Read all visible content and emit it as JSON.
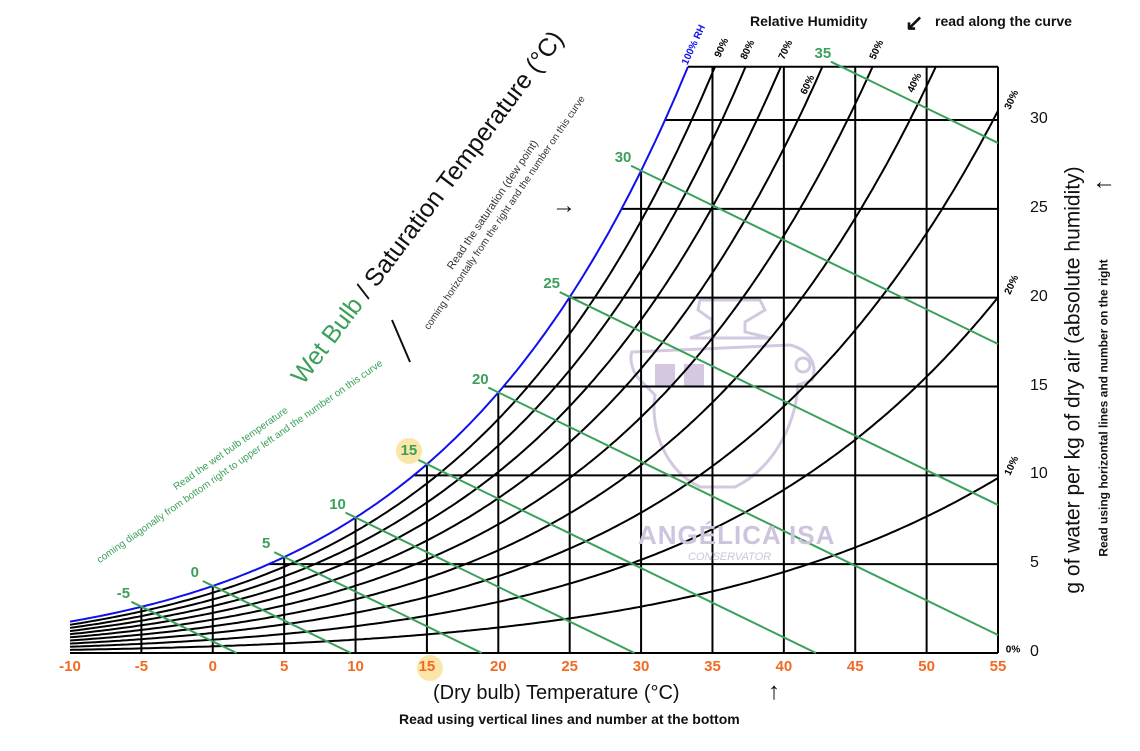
{
  "chart_data": {
    "type": "line",
    "title": "",
    "xlabel": "(Dry bulb) Temperature (°C)",
    "xlabel_note": "Read using vertical lines and number at the bottom",
    "ylabel": "g of water per kg of dry air (absolute humidity)",
    "ylabel_note": "Read using horizontal lines and number on the right",
    "xlim": [
      -10,
      55
    ],
    "ylim": [
      0,
      33
    ],
    "x_ticks": [
      "-10",
      "-5",
      "0",
      "5",
      "10",
      "15",
      "20",
      "25",
      "30",
      "35",
      "40",
      "45",
      "50",
      "55"
    ],
    "y_ticks": [
      "0",
      "5",
      "10",
      "15",
      "20",
      "25",
      "30"
    ],
    "grid": true,
    "relative_humidity": {
      "title": "Relative Humidity",
      "note": "read along the curve",
      "curves_percent": [
        0,
        10,
        20,
        30,
        40,
        50,
        60,
        70,
        80,
        90,
        100
      ],
      "labels": [
        "100% RH",
        "90%",
        "80%",
        "70%",
        "60%",
        "50%",
        "40%",
        "30%",
        "20%",
        "10%",
        "0%"
      ]
    },
    "saturation_curve": {
      "T": [
        -10,
        -5,
        0,
        5,
        10,
        15,
        20,
        25,
        30,
        33
      ],
      "w": [
        1.77,
        2.6,
        3.77,
        5.4,
        7.62,
        10.63,
        14.66,
        20.03,
        27.14,
        32.45
      ]
    },
    "wet_bulb": {
      "title_green": "Wet Bulb",
      "title_sep": "/",
      "title_black": "Saturation Temperature (°C)",
      "values": [
        -5,
        0,
        5,
        10,
        15,
        20,
        25,
        30,
        35
      ],
      "labels": [
        "-5",
        "0",
        "5",
        "10",
        "15",
        "20",
        "25",
        "30",
        "35"
      ],
      "note_line1": "Read the wet bulb temperature",
      "note_line2": "coming diagonally from bottom right to upper left and the number on this curve",
      "highlighted": "15"
    },
    "saturation_note_line1": "Read the saturation (dew point)",
    "saturation_note_line2": "coming horizontally from the right and the number on this curve",
    "highlighted_x_tick": "15",
    "colors": {
      "saturation": "#1010ee",
      "wet_bulb": "#3aa05a",
      "x_ticks": "#f26a21",
      "grid": "#000000",
      "highlight": "#fbe5a8",
      "watermark": "#cfc3dd"
    }
  },
  "watermark": {
    "name": "ANGÉLICA ISA",
    "subtitle": "CONSERVATOR"
  }
}
